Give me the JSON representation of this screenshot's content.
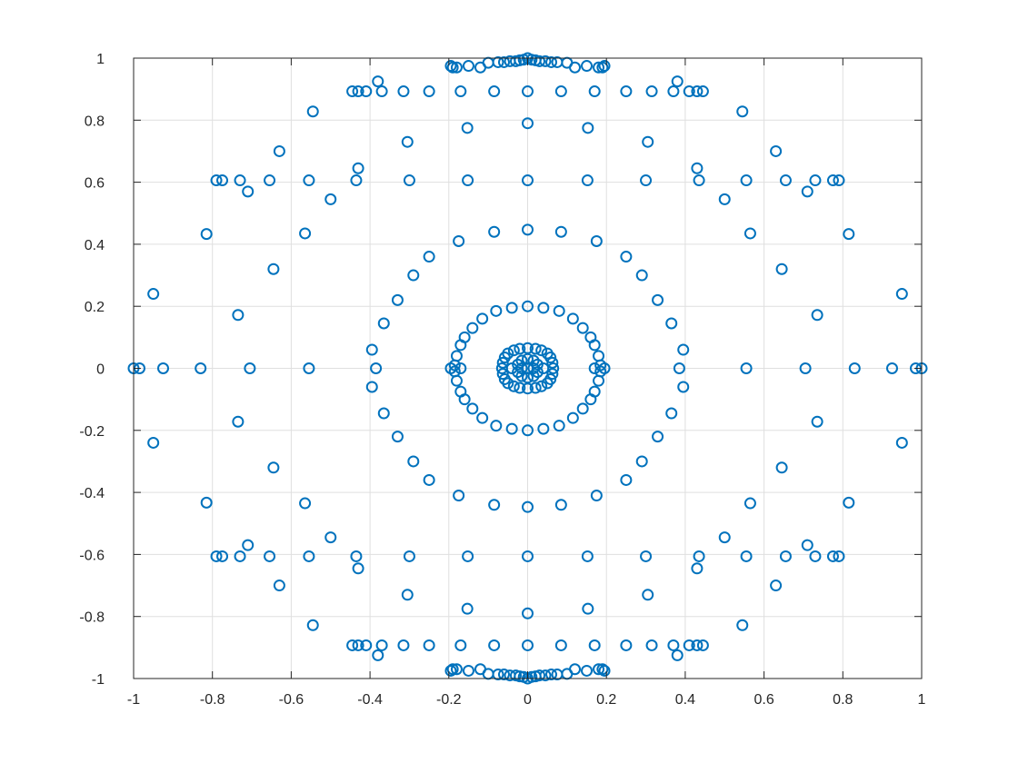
{
  "chart_data": {
    "type": "scatter",
    "title": "",
    "xlabel": "",
    "ylabel": "",
    "xlim": [
      -1,
      1
    ],
    "ylim": [
      -1,
      1
    ],
    "grid": true,
    "box": true,
    "marker": "circle-open",
    "color": "#0072BD",
    "xticks": [
      -1,
      -0.8,
      -0.6,
      -0.4,
      -0.2,
      0,
      0.2,
      0.4,
      0.6,
      0.8,
      1
    ],
    "yticks": [
      1,
      0.8,
      0.6,
      0.4,
      0.2,
      0,
      -0.2,
      -0.4,
      -0.6,
      -0.8,
      -1
    ],
    "xtick_labels": [
      "-1",
      "-0.8",
      "-0.6",
      "-0.4",
      "-0.2",
      "0",
      "0.2",
      "0.4",
      "0.6",
      "0.8",
      "1"
    ],
    "ytick_labels": [
      "1",
      "0.8",
      "0.6",
      "0.4",
      "0.2",
      "0",
      "-0.2",
      "-0.4",
      "-0.6",
      "-0.8",
      "-1"
    ],
    "points_upper_half": [
      [
        0,
        1
      ],
      [
        -0.01,
        0.995
      ],
      [
        0.01,
        0.995
      ],
      [
        -0.02,
        0.993
      ],
      [
        0.02,
        0.993
      ],
      [
        -0.03,
        0.99
      ],
      [
        0.03,
        0.99
      ],
      [
        -0.045,
        0.99
      ],
      [
        0.045,
        0.99
      ],
      [
        -0.06,
        0.987
      ],
      [
        0.06,
        0.987
      ],
      [
        -0.075,
        0.987
      ],
      [
        0.075,
        0.987
      ],
      [
        -0.1,
        0.985
      ],
      [
        0.1,
        0.985
      ],
      [
        -0.15,
        0.975
      ],
      [
        0.15,
        0.975
      ],
      [
        -0.18,
        0.97
      ],
      [
        0.18,
        0.97
      ],
      [
        -0.195,
        0.975
      ],
      [
        0.195,
        0.975
      ],
      [
        -0.19,
        0.97
      ],
      [
        0.19,
        0.97
      ],
      [
        -0.12,
        0.97
      ],
      [
        0.12,
        0.97
      ],
      [
        -0.445,
        0.893
      ],
      [
        -0.43,
        0.893
      ],
      [
        -0.41,
        0.893
      ],
      [
        -0.37,
        0.893
      ],
      [
        -0.315,
        0.893
      ],
      [
        -0.25,
        0.893
      ],
      [
        -0.17,
        0.893
      ],
      [
        -0.085,
        0.893
      ],
      [
        0,
        0.893
      ],
      [
        0.085,
        0.893
      ],
      [
        0.17,
        0.893
      ],
      [
        0.25,
        0.893
      ],
      [
        0.315,
        0.893
      ],
      [
        0.37,
        0.893
      ],
      [
        0.41,
        0.893
      ],
      [
        0.43,
        0.893
      ],
      [
        0.445,
        0.893
      ],
      [
        -0.38,
        0.925
      ],
      [
        0.38,
        0.925
      ],
      [
        -0.545,
        0.828
      ],
      [
        0.545,
        0.828
      ],
      [
        0,
        0.79
      ],
      [
        -0.153,
        0.775
      ],
      [
        0.153,
        0.775
      ],
      [
        -0.305,
        0.73
      ],
      [
        0.305,
        0.73
      ],
      [
        -0.63,
        0.7
      ],
      [
        0.63,
        0.7
      ],
      [
        -0.43,
        0.645
      ],
      [
        0.43,
        0.645
      ],
      [
        -0.79,
        0.606
      ],
      [
        -0.775,
        0.606
      ],
      [
        -0.73,
        0.606
      ],
      [
        -0.655,
        0.606
      ],
      [
        -0.555,
        0.606
      ],
      [
        -0.435,
        0.606
      ],
      [
        -0.3,
        0.606
      ],
      [
        -0.152,
        0.606
      ],
      [
        0,
        0.606
      ],
      [
        0.152,
        0.606
      ],
      [
        0.3,
        0.606
      ],
      [
        0.435,
        0.606
      ],
      [
        0.555,
        0.606
      ],
      [
        0.655,
        0.606
      ],
      [
        0.73,
        0.606
      ],
      [
        0.775,
        0.606
      ],
      [
        0.79,
        0.606
      ],
      [
        -0.71,
        0.57
      ],
      [
        0.71,
        0.57
      ],
      [
        -0.5,
        0.545
      ],
      [
        0.5,
        0.545
      ],
      [
        0,
        0.447
      ],
      [
        -0.085,
        0.44
      ],
      [
        0.085,
        0.44
      ],
      [
        -0.815,
        0.433
      ],
      [
        0.815,
        0.433
      ],
      [
        -0.565,
        0.435
      ],
      [
        0.565,
        0.435
      ],
      [
        -0.175,
        0.41
      ],
      [
        0.175,
        0.41
      ],
      [
        -0.25,
        0.36
      ],
      [
        0.25,
        0.36
      ],
      [
        -0.645,
        0.32
      ],
      [
        0.645,
        0.32
      ],
      [
        -0.29,
        0.3
      ],
      [
        0.29,
        0.3
      ],
      [
        -0.95,
        0.24
      ],
      [
        0.95,
        0.24
      ],
      [
        -0.33,
        0.22
      ],
      [
        0.33,
        0.22
      ],
      [
        -0.735,
        0.172
      ],
      [
        0.735,
        0.172
      ],
      [
        -0.365,
        0.145
      ],
      [
        0.365,
        0.145
      ],
      [
        -0.395,
        0.06
      ],
      [
        0.395,
        0.06
      ],
      [
        0,
        0.2
      ],
      [
        -0.04,
        0.195
      ],
      [
        0.04,
        0.195
      ],
      [
        -0.08,
        0.185
      ],
      [
        0.08,
        0.185
      ],
      [
        -0.115,
        0.16
      ],
      [
        0.115,
        0.16
      ],
      [
        -0.14,
        0.13
      ],
      [
        0.14,
        0.13
      ],
      [
        -0.16,
        0.1
      ],
      [
        0.16,
        0.1
      ],
      [
        -0.17,
        0.075
      ],
      [
        0.17,
        0.075
      ],
      [
        -0.18,
        0.04
      ],
      [
        0.18,
        0.04
      ],
      [
        -0.185,
        0.01
      ],
      [
        0.185,
        0.01
      ],
      [
        0,
        0.065
      ],
      [
        -0.02,
        0.063
      ],
      [
        0.02,
        0.063
      ],
      [
        -0.035,
        0.058
      ],
      [
        0.035,
        0.058
      ],
      [
        -0.05,
        0.048
      ],
      [
        0.05,
        0.048
      ],
      [
        -0.058,
        0.035
      ],
      [
        0.058,
        0.035
      ],
      [
        -0.063,
        0.018
      ],
      [
        0.063,
        0.018
      ],
      [
        0,
        0.03
      ],
      [
        -0.015,
        0.025
      ],
      [
        0.015,
        0.025
      ],
      [
        -0.025,
        0.012
      ],
      [
        0.025,
        0.012
      ]
    ],
    "points_axis": [
      [
        -1,
        0
      ],
      [
        -0.985,
        0
      ],
      [
        -0.925,
        0
      ],
      [
        -0.83,
        0
      ],
      [
        -0.705,
        0
      ],
      [
        -0.555,
        0
      ],
      [
        -0.385,
        0
      ],
      [
        -0.195,
        0
      ],
      [
        -0.17,
        0
      ],
      [
        -0.065,
        0
      ],
      [
        -0.04,
        0
      ],
      [
        -0.015,
        0
      ],
      [
        0,
        0
      ],
      [
        0.015,
        0
      ],
      [
        0.04,
        0
      ],
      [
        0.065,
        0
      ],
      [
        0.17,
        0
      ],
      [
        0.195,
        0
      ],
      [
        0.385,
        0
      ],
      [
        0.555,
        0
      ],
      [
        0.705,
        0
      ],
      [
        0.83,
        0
      ],
      [
        0.925,
        0
      ],
      [
        0.985,
        0
      ],
      [
        1,
        0
      ]
    ],
    "symmetry": "points_upper_half are mirrored across y = 0 to produce the lower half"
  }
}
